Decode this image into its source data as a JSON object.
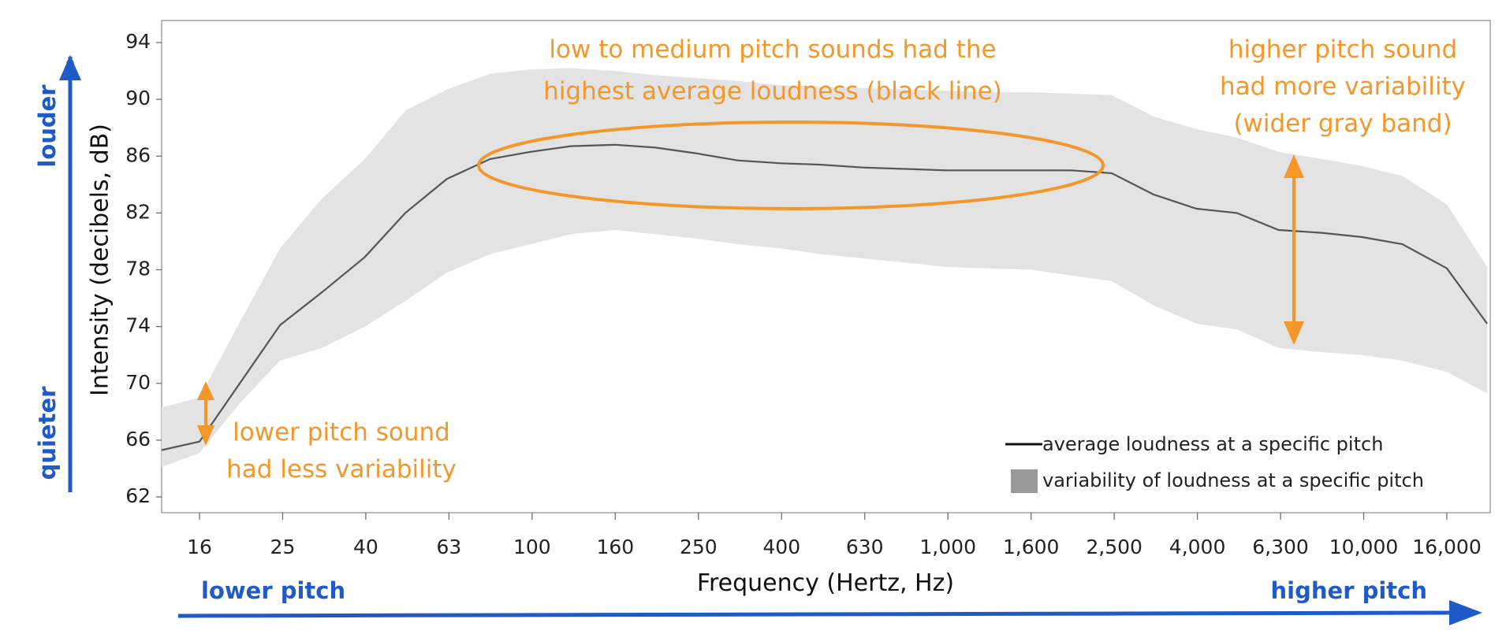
{
  "chart_data": {
    "type": "line",
    "title": "",
    "xlabel": "Frequency (Hertz, Hz)",
    "ylabel": "Intensity  (decibels, dB)",
    "categories": [
      "16",
      "25",
      "40",
      "63",
      "100",
      "160",
      "250",
      "400",
      "630",
      "1,000",
      "1,600",
      "2,500",
      "4,000",
      "6,300",
      "10,000",
      "16,000"
    ],
    "y_ticks": [
      "94",
      "90",
      "86",
      "82",
      "78",
      "74",
      "70",
      "66",
      "62"
    ],
    "ylim": [
      62,
      96
    ],
    "grid": false,
    "band": {
      "x": [
        12.5,
        16,
        20,
        25,
        31.5,
        40,
        50,
        63,
        80,
        100,
        125,
        160,
        200,
        250,
        315,
        400,
        500,
        630,
        800,
        1000,
        1250,
        1600,
        2000,
        2500,
        3150,
        4000,
        5000,
        6300,
        8000,
        10000,
        12500,
        16000,
        20000
      ],
      "upper": [
        68.3,
        69.0,
        74.3,
        79.5,
        83.0,
        85.8,
        89.2,
        90.7,
        91.8,
        92.1,
        92.2,
        92.0,
        91.7,
        91.5,
        91.3,
        91.0,
        90.9,
        90.8,
        90.7,
        90.6,
        90.5,
        90.5,
        90.4,
        90.3,
        88.8,
        87.9,
        87.3,
        86.3,
        85.8,
        85.3,
        84.6,
        82.6,
        78.2
      ],
      "lower": [
        64.1,
        65.1,
        68.6,
        71.6,
        72.5,
        74.0,
        75.8,
        77.8,
        79.1,
        79.8,
        80.5,
        80.8,
        80.5,
        80.2,
        79.8,
        79.5,
        79.1,
        78.8,
        78.5,
        78.2,
        78.1,
        78.0,
        77.6,
        77.2,
        75.5,
        74.2,
        73.8,
        72.5,
        72.2,
        72.0,
        71.6,
        70.8,
        69.3
      ]
    },
    "series": [
      {
        "name": "average loudness at a specific pitch",
        "x": [
          12.5,
          16,
          20,
          25,
          31.5,
          40,
          50,
          63,
          80,
          100,
          125,
          160,
          200,
          250,
          315,
          400,
          500,
          630,
          800,
          1000,
          1250,
          1600,
          2000,
          2500,
          3150,
          4000,
          5000,
          6300,
          8000,
          10000,
          12500,
          16000,
          20000
        ],
        "values": [
          65.3,
          65.9,
          70.0,
          74.1,
          76.4,
          78.9,
          82.0,
          84.4,
          85.8,
          86.3,
          86.7,
          86.8,
          86.6,
          86.2,
          85.7,
          85.5,
          85.4,
          85.2,
          85.1,
          85.0,
          85.0,
          85.0,
          85.0,
          84.8,
          83.3,
          82.3,
          82.0,
          80.8,
          80.6,
          80.3,
          79.8,
          78.1,
          74.2
        ]
      }
    ],
    "legend": {
      "position": "bottom-right",
      "line_label": "average loudness at a specific pitch",
      "band_label": "variability of loudness at a specific pitch"
    },
    "annotations": {
      "top_center": [
        "low to medium pitch sounds had the",
        "highest average loudness (black line)"
      ],
      "top_right": [
        "higher pitch sound",
        "had more variability",
        "(wider gray band)"
      ],
      "bottom_left": [
        "lower pitch sound",
        "had less variability"
      ]
    },
    "direction_labels": {
      "louder": "louder",
      "quieter": "quieter",
      "lower_pitch": "lower pitch",
      "higher_pitch": "higher pitch"
    },
    "colors": {
      "band": "#e3e3e3",
      "line": "#555555",
      "annotation": "#f4972a",
      "direction": "#1f5bc8",
      "legend_swatch": "#999999"
    }
  }
}
